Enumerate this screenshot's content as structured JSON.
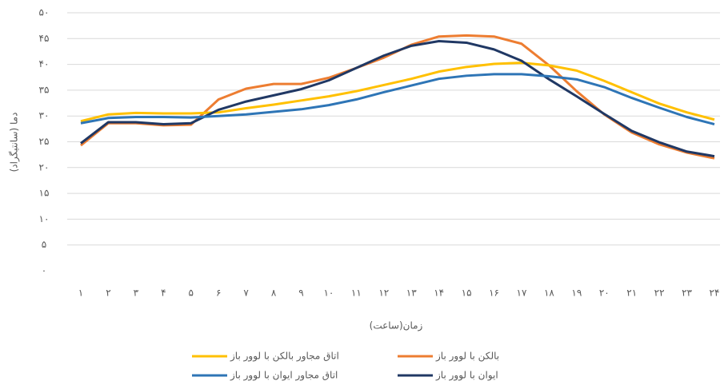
{
  "chart_data": {
    "type": "line",
    "x_label": "زمان(ساعت)",
    "y_label": "دما (سانتیگراد)",
    "categories": [
      "۱",
      "۲",
      "۳",
      "۴",
      "۵",
      "۶",
      "۷",
      "۸",
      "۹",
      "۱۰",
      "۱۱",
      "۱۲",
      "۱۳",
      "۱۴",
      "۱۵",
      "۱۶",
      "۱۷",
      "۱۸",
      "۱۹",
      "۲۰",
      "۲۱",
      "۲۲",
      "۲۳",
      "۲۴"
    ],
    "series": [
      {
        "name": "بالکن با لوور باز",
        "color": "#ed7d31",
        "values": [
          24.3,
          28.6,
          28.6,
          28.2,
          28.3,
          33.2,
          35.3,
          36.2,
          36.2,
          37.4,
          39.3,
          41.3,
          43.8,
          45.4,
          45.6,
          45.4,
          44,
          39.8,
          34.8,
          30.3,
          26.8,
          24.5,
          22.9,
          21.8
        ]
      },
      {
        "name": "اتاق مجاور بالکن با لوور باز",
        "color": "#ffc000",
        "values": [
          29,
          30.3,
          30.6,
          30.5,
          30.5,
          30.7,
          31.5,
          32.2,
          33,
          33.8,
          34.8,
          36,
          37.2,
          38.6,
          39.5,
          40.1,
          40.3,
          39.8,
          38.8,
          36.8,
          34.6,
          32.4,
          30.7,
          29.3
        ]
      },
      {
        "name": "ایوان با لوور باز",
        "color": "#203864",
        "values": [
          24.7,
          28.8,
          28.8,
          28.4,
          28.6,
          31.2,
          32.8,
          34,
          35.2,
          36.9,
          39.3,
          41.7,
          43.6,
          44.5,
          44.2,
          42.9,
          40.7,
          37.1,
          33.8,
          30.4,
          27.1,
          24.9,
          23.1,
          22.2
        ]
      },
      {
        "name": "اتاق مجاور ایوان با لوور باز",
        "color": "#2e75b6",
        "values": [
          28.6,
          29.6,
          29.8,
          29.8,
          29.7,
          30,
          30.3,
          30.8,
          31.3,
          32.1,
          33.2,
          34.6,
          35.9,
          37.2,
          37.8,
          38.1,
          38.1,
          37.7,
          37.1,
          35.6,
          33.5,
          31.6,
          29.8,
          28.4
        ]
      }
    ],
    "ylim": [
      0,
      50
    ],
    "yticks": [
      {
        "value": 0,
        "label": "۰"
      },
      {
        "value": 5,
        "label": "۵"
      },
      {
        "value": 10,
        "label": "۱۰"
      },
      {
        "value": 15,
        "label": "۱۵"
      },
      {
        "value": 20,
        "label": "۲۰"
      },
      {
        "value": 25,
        "label": "۲۵"
      },
      {
        "value": 30,
        "label": "۳۰"
      },
      {
        "value": 35,
        "label": "۳۵"
      },
      {
        "value": 40,
        "label": "۴۰"
      },
      {
        "value": 45,
        "label": "۴۵"
      },
      {
        "value": 50,
        "label": "۵۰"
      }
    ],
    "grid": true
  }
}
